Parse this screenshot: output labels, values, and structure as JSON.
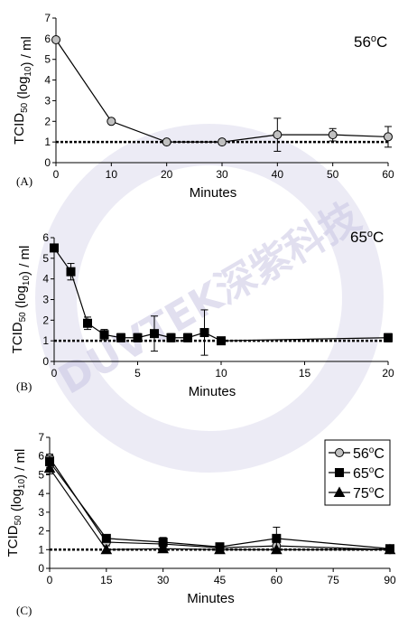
{
  "watermark": {
    "text": "DUVTEK深紫科技",
    "color": "#c9c6e3"
  },
  "colors": {
    "56": "#c0c0c0",
    "65": "#000000",
    "75": "#000000"
  },
  "chart_data": [
    {
      "type": "line",
      "panel_label": "(A)",
      "annotation": "56oC",
      "xlabel": "Minutes",
      "ylabel": "TCID50 (log10) / ml",
      "xlim": [
        0,
        60
      ],
      "ylim": [
        0,
        7
      ],
      "xticks": [
        0,
        10,
        20,
        30,
        40,
        50,
        60
      ],
      "yticks": [
        0,
        1,
        2,
        3,
        4,
        5,
        6,
        7
      ],
      "grid": false,
      "threshold": 1,
      "series": [
        {
          "key": "56",
          "marker": "circle",
          "x": [
            0,
            10,
            20,
            30,
            40,
            50,
            60
          ],
          "y": [
            5.95,
            2.0,
            1.0,
            1.0,
            1.35,
            1.35,
            1.25
          ],
          "err": [
            0,
            0,
            0,
            0,
            0.8,
            0.3,
            0.5
          ]
        }
      ]
    },
    {
      "type": "line",
      "panel_label": "(B)",
      "annotation": "65oC",
      "xlabel": "Minutes",
      "ylabel": "TCID50 (log10) / ml",
      "xlim": [
        0,
        20
      ],
      "ylim": [
        0,
        6
      ],
      "xticks": [
        0,
        5,
        10,
        15,
        20
      ],
      "yticks": [
        0,
        1,
        2,
        3,
        4,
        5,
        6
      ],
      "grid": false,
      "threshold": 1,
      "series": [
        {
          "key": "65",
          "marker": "square",
          "x": [
            0,
            1,
            2,
            3,
            4,
            5,
            6,
            7,
            8,
            9,
            10,
            20
          ],
          "y": [
            5.5,
            4.35,
            1.85,
            1.3,
            1.15,
            1.15,
            1.35,
            1.15,
            1.15,
            1.4,
            1.0,
            1.15
          ],
          "err": [
            0,
            0.4,
            0.3,
            0.25,
            0.2,
            0.2,
            0.85,
            0.2,
            0.2,
            1.1,
            0,
            0.2
          ]
        }
      ]
    },
    {
      "type": "line",
      "panel_label": "(C)",
      "xlabel": "Minutes",
      "ylabel": "TCID50 (log10) / ml",
      "xlim": [
        0,
        90
      ],
      "ylim": [
        0,
        7
      ],
      "xticks": [
        0,
        15,
        30,
        45,
        60,
        75,
        90
      ],
      "yticks": [
        0,
        1,
        2,
        3,
        4,
        5,
        6,
        7
      ],
      "grid": false,
      "threshold": 1,
      "legend_position": "top-right",
      "series": [
        {
          "key": "56",
          "name": "56oC",
          "marker": "circle",
          "x": [
            0,
            15,
            30,
            45,
            60,
            90
          ],
          "y": [
            5.9,
            1.4,
            1.3,
            1.1,
            1.2,
            1.0
          ],
          "err": [
            0.2,
            0.2,
            0.2,
            0.15,
            0.3,
            0
          ]
        },
        {
          "key": "65",
          "name": "65oC",
          "marker": "square",
          "x": [
            0,
            15,
            30,
            45,
            60,
            90
          ],
          "y": [
            5.7,
            1.6,
            1.4,
            1.15,
            1.6,
            1.05
          ],
          "err": [
            0.3,
            0.2,
            0.25,
            0.2,
            0.6,
            0.1
          ]
        },
        {
          "key": "75",
          "name": "75oC",
          "marker": "triangle",
          "x": [
            0,
            15,
            30,
            45,
            60,
            90
          ],
          "y": [
            5.35,
            1.0,
            1.05,
            1.0,
            1.0,
            1.0
          ],
          "err": [
            0.3,
            0,
            0.15,
            0,
            0,
            0
          ]
        }
      ]
    }
  ]
}
